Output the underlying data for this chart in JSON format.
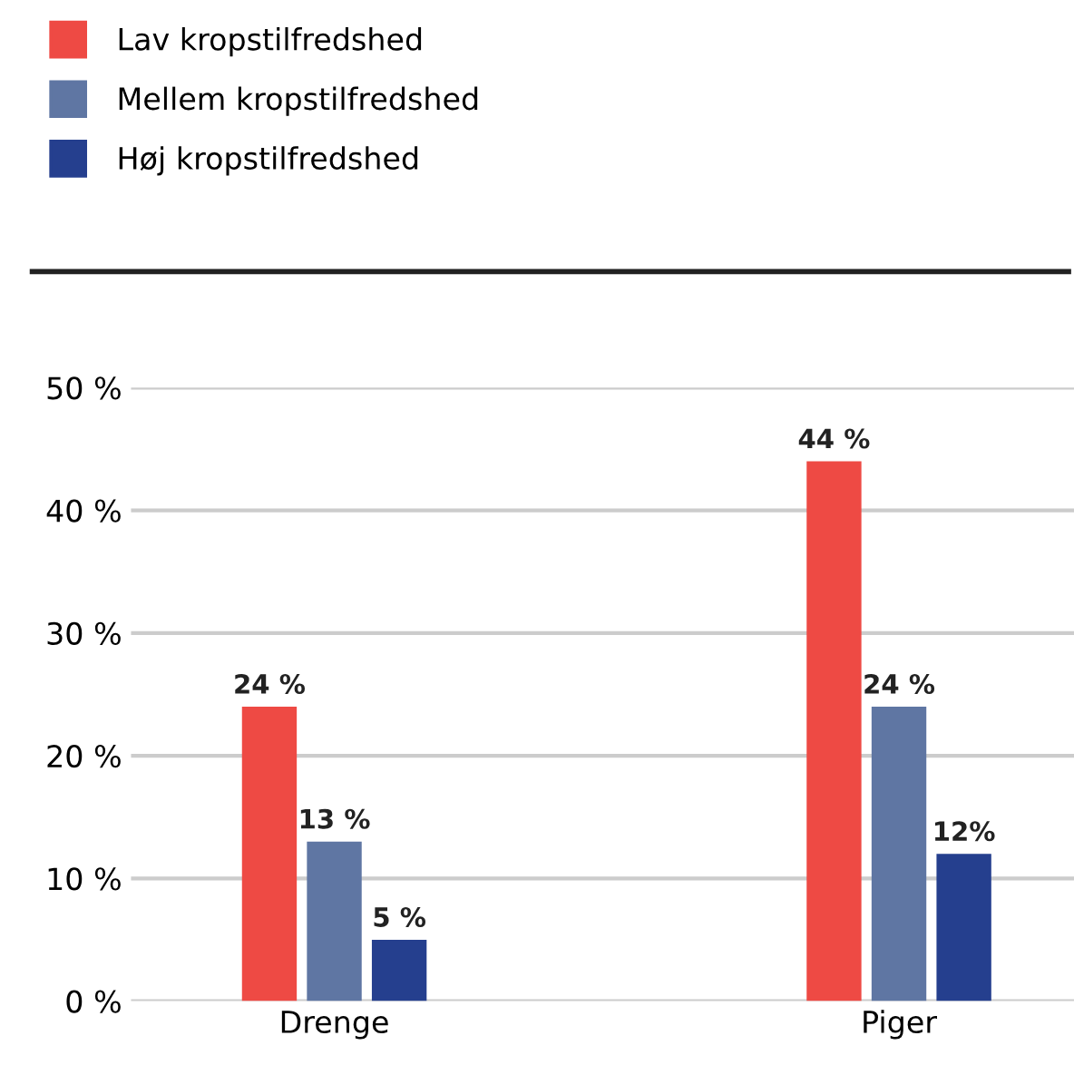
{
  "chart_data": {
    "type": "bar",
    "categories": [
      "Drenge",
      "Piger"
    ],
    "series": [
      {
        "name": "Lav kropstilfredshed",
        "color": "#ee4a44",
        "values": [
          24,
          44
        ],
        "value_labels": [
          "24 %",
          "44 %"
        ]
      },
      {
        "name": "Mellem kropstilfredshed",
        "color": "#5f76a3",
        "values": [
          13,
          24
        ],
        "value_labels": [
          "13 %",
          "24 %"
        ]
      },
      {
        "name": "Høj kropstilfredshed",
        "color": "#253f8e",
        "values": [
          5,
          12
        ],
        "value_labels": [
          "5 %",
          "12%"
        ]
      }
    ],
    "ylim": [
      0,
      50
    ],
    "yticks": [
      {
        "value": 0,
        "label": "0 %"
      },
      {
        "value": 10,
        "label": "10 %"
      },
      {
        "value": 20,
        "label": "20 %"
      },
      {
        "value": 30,
        "label": "30 %"
      },
      {
        "value": 40,
        "label": "40 %"
      },
      {
        "value": 50,
        "label": "50 %"
      }
    ],
    "grid": "y",
    "legend": "top left"
  }
}
